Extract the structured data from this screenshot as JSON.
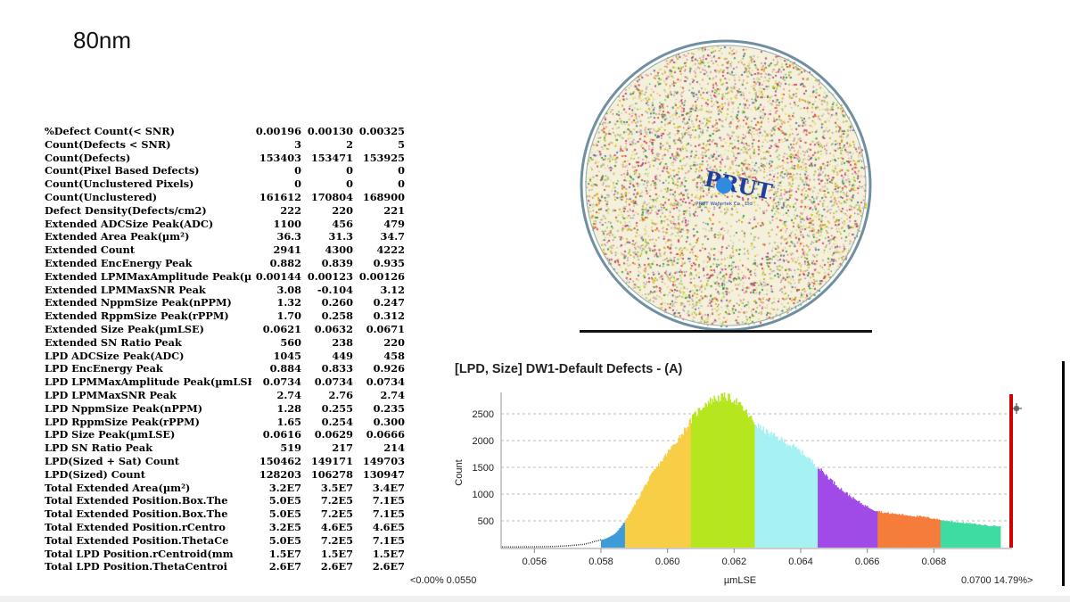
{
  "slide": {
    "title": "80nm"
  },
  "metrics": [
    {
      "name": "%Defect Count(< SNR)",
      "values": [
        "0.00196",
        "0.00130",
        "0.00325"
      ]
    },
    {
      "name": "Count(Defects < SNR)",
      "values": [
        "3",
        "2",
        "5"
      ]
    },
    {
      "name": "Count(Defects)",
      "values": [
        "153403",
        "153471",
        "153925"
      ]
    },
    {
      "name": "Count(Pixel Based Defects)",
      "values": [
        "0",
        "0",
        "0"
      ]
    },
    {
      "name": "Count(Unclustered Pixels)",
      "values": [
        "0",
        "0",
        "0"
      ]
    },
    {
      "name": "Count(Unclustered)",
      "values": [
        "161612",
        "170804",
        "168900"
      ]
    },
    {
      "name": "Defect Density(Defects/cm2)",
      "values": [
        "222",
        "220",
        "221"
      ]
    },
    {
      "name": "Extended ADCSize Peak(ADC)",
      "values": [
        "1100",
        "456",
        "479"
      ]
    },
    {
      "name": "Extended Area Peak(µm²)",
      "values": [
        "36.3",
        "31.3",
        "34.7"
      ]
    },
    {
      "name": "Extended Count",
      "values": [
        "2941",
        "4300",
        "4222"
      ]
    },
    {
      "name": "Extended EncEnergy Peak",
      "values": [
        "0.882",
        "0.839",
        "0.935"
      ]
    },
    {
      "name": "Extended LPMMaxAmplitude Peak(µ",
      "values": [
        "0.00144",
        "0.00123",
        "0.00126"
      ]
    },
    {
      "name": "Extended LPMMaxSNR Peak",
      "values": [
        "3.08",
        "-0.104",
        "3.12"
      ]
    },
    {
      "name": "Extended NppmSize Peak(nPPM)",
      "values": [
        "1.32",
        "0.260",
        "0.247"
      ]
    },
    {
      "name": "Extended RppmSize Peak(rPPM)",
      "values": [
        "1.70",
        "0.258",
        "0.312"
      ]
    },
    {
      "name": "Extended Size Peak(µmLSE)",
      "values": [
        "0.0621",
        "0.0632",
        "0.0671"
      ]
    },
    {
      "name": "Extended SN Ratio Peak",
      "values": [
        "560",
        "238",
        "220"
      ]
    },
    {
      "name": "LPD ADCSize Peak(ADC)",
      "values": [
        "1045",
        "449",
        "458"
      ]
    },
    {
      "name": "LPD EncEnergy Peak",
      "values": [
        "0.884",
        "0.833",
        "0.926"
      ]
    },
    {
      "name": "LPD LPMMaxAmplitude Peak(µmLSE)",
      "values": [
        "0.0734",
        "0.0734",
        "0.0734"
      ]
    },
    {
      "name": "LPD LPMMaxSNR Peak",
      "values": [
        "2.74",
        "2.76",
        "2.74"
      ]
    },
    {
      "name": "LPD NppmSize Peak(nPPM)",
      "values": [
        "1.28",
        "0.255",
        "0.235"
      ]
    },
    {
      "name": "LPD RppmSize Peak(rPPM)",
      "values": [
        "1.65",
        "0.254",
        "0.300"
      ]
    },
    {
      "name": "LPD Size Peak(µmLSE)",
      "values": [
        "0.0616",
        "0.0629",
        "0.0666"
      ]
    },
    {
      "name": "LPD SN Ratio Peak",
      "values": [
        "519",
        "217",
        "214"
      ]
    },
    {
      "name": "LPD(Sized + Sat) Count",
      "values": [
        "150462",
        "149171",
        "149703"
      ]
    },
    {
      "name": "LPD(Sized) Count",
      "values": [
        "128203",
        "106278",
        "130947"
      ]
    },
    {
      "name": "Total Extended Area(µm²)",
      "values": [
        "3.2E7",
        "3.5E7",
        "3.4E7"
      ]
    },
    {
      "name": "Total Extended Position.Box.The",
      "values": [
        "5.0E5",
        "7.2E5",
        "7.1E5"
      ]
    },
    {
      "name": "Total Extended Position.Box.The",
      "values": [
        "5.0E5",
        "7.2E5",
        "7.1E5"
      ]
    },
    {
      "name": "Total Extended Position.rCentro",
      "values": [
        "3.2E5",
        "4.6E5",
        "4.6E5"
      ]
    },
    {
      "name": "Total Extended Position.ThetaCe",
      "values": [
        "5.0E5",
        "7.2E5",
        "7.1E5"
      ]
    },
    {
      "name": "Total LPD Position.rCentroid(mm",
      "values": [
        "1.5E7",
        "1.5E7",
        "1.5E7"
      ]
    },
    {
      "name": "Total LPD Position.ThetaCentroi",
      "values": [
        "2.6E7",
        "2.6E7",
        "2.6E7"
      ]
    }
  ],
  "wafer": {
    "logo_text": "PRUT",
    "logo_subtext": "PRUT Wafertek Co., Ltd",
    "edge_color": "#6f8fa0"
  },
  "histogram": {
    "title": "[LPD, Size] DW1-Default Defects - (A)",
    "ylabel": "Count",
    "xlabel": "µmLSE",
    "left_label": "<0.00% 0.0550",
    "right_label": "0.0700  14.79%>",
    "cursor_icon": "crosshair-cursor-icon",
    "marker_color": "#d40000"
  },
  "chart_data": {
    "type": "bar",
    "title": "[LPD, Size] DW1-Default Defects - (A)",
    "xlabel": "µmLSE",
    "ylabel": "Count",
    "xlim": [
      0.055,
      0.07
    ],
    "ylim": [
      0,
      2900
    ],
    "xticks": [
      "0.056",
      "0.058",
      "0.060",
      "0.062",
      "0.064",
      "0.066",
      "0.068"
    ],
    "yticks": [
      "500",
      "1000",
      "1500",
      "2000",
      "2500"
    ],
    "grid": "horizontal-dashed",
    "x": [
      0.055,
      0.0555,
      0.056,
      0.0565,
      0.057,
      0.0575,
      0.0578,
      0.0581,
      0.0584,
      0.0587,
      0.059,
      0.0593,
      0.0596,
      0.0599,
      0.0602,
      0.0605,
      0.0608,
      0.0611,
      0.0614,
      0.0617,
      0.062,
      0.0623,
      0.0626,
      0.0629,
      0.0632,
      0.0635,
      0.0638,
      0.0641,
      0.0644,
      0.0647,
      0.065,
      0.0653,
      0.0656,
      0.0659,
      0.0662,
      0.0665,
      0.0668,
      0.0671,
      0.0674,
      0.0677,
      0.068,
      0.0683,
      0.0686,
      0.0689,
      0.0692,
      0.0695,
      0.0699
    ],
    "values": [
      5,
      8,
      10,
      15,
      30,
      60,
      110,
      160,
      250,
      480,
      800,
      1150,
      1450,
      1700,
      1950,
      2200,
      2480,
      2680,
      2780,
      2820,
      2760,
      2560,
      2320,
      2180,
      2080,
      1980,
      1870,
      1740,
      1560,
      1380,
      1200,
      1040,
      900,
      790,
      700,
      650,
      630,
      610,
      590,
      570,
      540,
      500,
      480,
      460,
      440,
      420,
      400
    ],
    "color_bins": [
      {
        "from": 0.055,
        "to": 0.058,
        "color": "#444444",
        "style": "dotted"
      },
      {
        "from": 0.058,
        "to": 0.0587,
        "color": "#3f9ad8"
      },
      {
        "from": 0.0587,
        "to": 0.0607,
        "color": "#f7cf47"
      },
      {
        "from": 0.0607,
        "to": 0.0626,
        "color": "#b6e61f"
      },
      {
        "from": 0.0626,
        "to": 0.0645,
        "color": "#a6f2f2"
      },
      {
        "from": 0.0645,
        "to": 0.0663,
        "color": "#a04be8"
      },
      {
        "from": 0.0663,
        "to": 0.0682,
        "color": "#f57c3b"
      },
      {
        "from": 0.0682,
        "to": 0.07,
        "color": "#3fdca2"
      }
    ]
  }
}
